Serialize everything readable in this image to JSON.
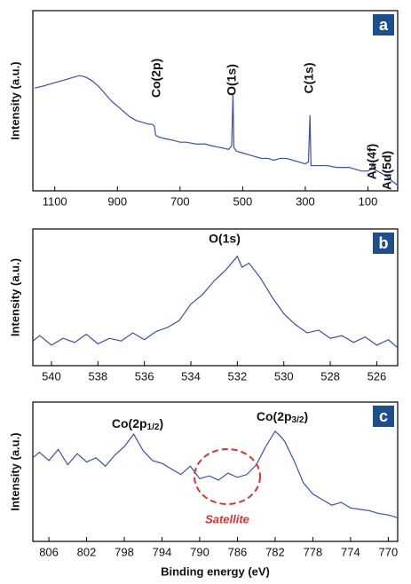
{
  "chart_data": [
    {
      "type": "line",
      "panel_label": "a",
      "y_label": "Intensity (a.u.)",
      "annotations": [
        "Co(2p)",
        "O(1s)",
        "C(1s)",
        "Au(4f)",
        "Au(5d)"
      ],
      "xlim": [
        1170,
        5
      ],
      "xticks": [
        1100,
        900,
        700,
        500,
        300,
        100
      ],
      "ylim": [
        0,
        100
      ],
      "x": [
        1165,
        1140,
        1120,
        1100,
        1080,
        1060,
        1040,
        1020,
        1000,
        980,
        960,
        940,
        920,
        900,
        880,
        860,
        840,
        820,
        800,
        790,
        782,
        778,
        770,
        750,
        720,
        700,
        680,
        650,
        620,
        600,
        570,
        545,
        535,
        531,
        528,
        520,
        500,
        480,
        460,
        440,
        420,
        400,
        380,
        360,
        340,
        320,
        300,
        290,
        285,
        282,
        270,
        250,
        230,
        200,
        180,
        160,
        140,
        120,
        100,
        90,
        84,
        80,
        60,
        40,
        20,
        5
      ],
      "series": [
        {
          "color": "#3b4fb3",
          "values": [
            57,
            58,
            59,
            60,
            61,
            62,
            63,
            64,
            63,
            61,
            58,
            54,
            50,
            47,
            44,
            41,
            39,
            38,
            37,
            37,
            36,
            31,
            30,
            29,
            28,
            27,
            27,
            26,
            26,
            25,
            24,
            23,
            25,
            54,
            24,
            22,
            21,
            20,
            19,
            18,
            18,
            17,
            18,
            18,
            17,
            16,
            15,
            16,
            42,
            14,
            14,
            14,
            14,
            13,
            13,
            13,
            12,
            11,
            11,
            12,
            15,
            12,
            10,
            8,
            5,
            3
          ]
        }
      ]
    },
    {
      "type": "line",
      "panel_label": "b",
      "y_label": "Intensity (a.u.)",
      "annotations": [
        "O(1s)"
      ],
      "xlim": [
        540.8,
        525.1
      ],
      "xticks": [
        540,
        538,
        536,
        534,
        532,
        530,
        528,
        526
      ],
      "ylim": [
        0,
        100
      ],
      "x": [
        540.8,
        540.5,
        540,
        539.5,
        539,
        538.5,
        538,
        537.5,
        537,
        536.5,
        536,
        535.5,
        535,
        534.5,
        534,
        533.5,
        533,
        532.5,
        532,
        531.8,
        531.5,
        531,
        530.5,
        530,
        529.5,
        529,
        528.5,
        528,
        527.5,
        527,
        526.5,
        526,
        525.5,
        525.1
      ],
      "series": [
        {
          "color": "#3b4fb3",
          "values": [
            18,
            22,
            15,
            20,
            17,
            23,
            16,
            20,
            18,
            24,
            19,
            25,
            28,
            33,
            45,
            52,
            62,
            70,
            80,
            72,
            75,
            64,
            50,
            38,
            30,
            24,
            26,
            20,
            22,
            17,
            21,
            15,
            19,
            13
          ]
        }
      ]
    },
    {
      "type": "line",
      "panel_label": "c",
      "y_label": "Intensity (a.u.)",
      "x_label": "Binding energy  (eV)",
      "annotations": [
        [
          "Co(2p",
          "1/2",
          ")"
        ],
        [
          "Co(2p",
          "3/2",
          ")"
        ],
        "Satellite"
      ],
      "xlim": [
        807.7,
        769
      ],
      "xticks": [
        806,
        802,
        798,
        794,
        790,
        786,
        782,
        778,
        774,
        770
      ],
      "ylim": [
        0,
        100
      ],
      "x": [
        807.7,
        807,
        806,
        805,
        804,
        803,
        802,
        801,
        800,
        799,
        798,
        797,
        796,
        795,
        794,
        793,
        792,
        791,
        790,
        789,
        788,
        787,
        786,
        785,
        784,
        783,
        782,
        781.5,
        781,
        780,
        779,
        778,
        777,
        776,
        775,
        774,
        773,
        772,
        771,
        770,
        769
      ],
      "series": [
        {
          "color": "#3b4fb3",
          "values": [
            60,
            64,
            58,
            66,
            55,
            63,
            57,
            60,
            54,
            62,
            68,
            77,
            65,
            58,
            56,
            52,
            48,
            54,
            45,
            47,
            44,
            49,
            46,
            48,
            55,
            68,
            79,
            76,
            72,
            58,
            42,
            34,
            30,
            26,
            28,
            24,
            23,
            22,
            20,
            19,
            17
          ]
        }
      ]
    }
  ]
}
